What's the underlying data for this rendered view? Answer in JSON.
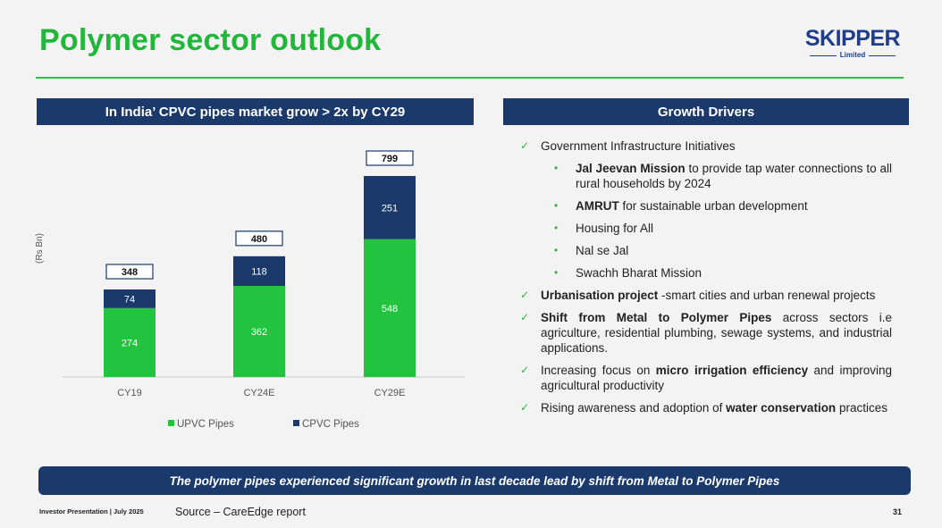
{
  "page": {
    "title": "Polymer sector outlook",
    "logo_name": "SKIPPER",
    "logo_sub": "Limited"
  },
  "left_panel": {
    "heading": "In India’ CPVC pipes market grow > 2x by CY29"
  },
  "right_panel": {
    "heading": "Growth Drivers"
  },
  "chart_data": {
    "type": "bar",
    "stacked": true,
    "categories": [
      "CY19",
      "CY24E",
      "CY29E"
    ],
    "series": [
      {
        "name": "UPVC Pipes",
        "values": [
          274,
          362,
          548
        ],
        "color": "#22c33f"
      },
      {
        "name": "CPVC Pipes",
        "values": [
          74,
          118,
          251
        ],
        "color": "#1b3a6b"
      }
    ],
    "totals": [
      348,
      480,
      799
    ],
    "ylabel": "(Rs Bn)",
    "xlabel": "",
    "ylim": [
      0,
      900
    ],
    "grid": false,
    "legend": "bottom"
  },
  "drivers": [
    {
      "type": "main",
      "parts": [
        {
          "text": "Government Infrastructure Initiatives",
          "bold": false
        }
      ]
    },
    {
      "type": "sub",
      "parts": [
        {
          "text": "Jal Jeevan Mission",
          "bold": true
        },
        {
          "text": " to provide tap water connections to all rural households by 2024",
          "bold": false
        }
      ]
    },
    {
      "type": "sub",
      "parts": [
        {
          "text": "AMRUT",
          "bold": true
        },
        {
          "text": " for sustainable urban development",
          "bold": false
        }
      ]
    },
    {
      "type": "sub",
      "parts": [
        {
          "text": "Housing for All",
          "bold": false
        }
      ]
    },
    {
      "type": "sub",
      "parts": [
        {
          "text": "Nal se Jal",
          "bold": false
        }
      ]
    },
    {
      "type": "sub",
      "parts": [
        {
          "text": "Swachh Bharat Mission",
          "bold": false
        }
      ]
    },
    {
      "type": "main",
      "parts": [
        {
          "text": "Urbanisation project",
          "bold": true
        },
        {
          "text": " -smart cities and urban renewal projects",
          "bold": false
        }
      ]
    },
    {
      "type": "main",
      "parts": [
        {
          "text": "Shift from Metal to Polymer Pipes",
          "bold": true
        },
        {
          "text": " across sectors i.e agriculture, residential plumbing, sewage systems, and industrial applications.",
          "bold": false
        }
      ]
    },
    {
      "type": "main",
      "parts": [
        {
          "text": "Increasing focus on ",
          "bold": false
        },
        {
          "text": "micro irrigation efficiency",
          "bold": true
        },
        {
          "text": " and improving agricultural productivity",
          "bold": false
        }
      ]
    },
    {
      "type": "main",
      "parts": [
        {
          "text": "Rising awareness and adoption of ",
          "bold": false
        },
        {
          "text": "water conservation",
          "bold": true
        },
        {
          "text": " practices",
          "bold": false
        }
      ]
    }
  ],
  "banner": {
    "text": "The polymer pipes experienced significant growth in last decade lead by shift from Metal to Polymer Pipes"
  },
  "footer": {
    "left": "Investor Presentation | July 2025",
    "source": "Source – CareEdge report",
    "page_number": "31"
  }
}
